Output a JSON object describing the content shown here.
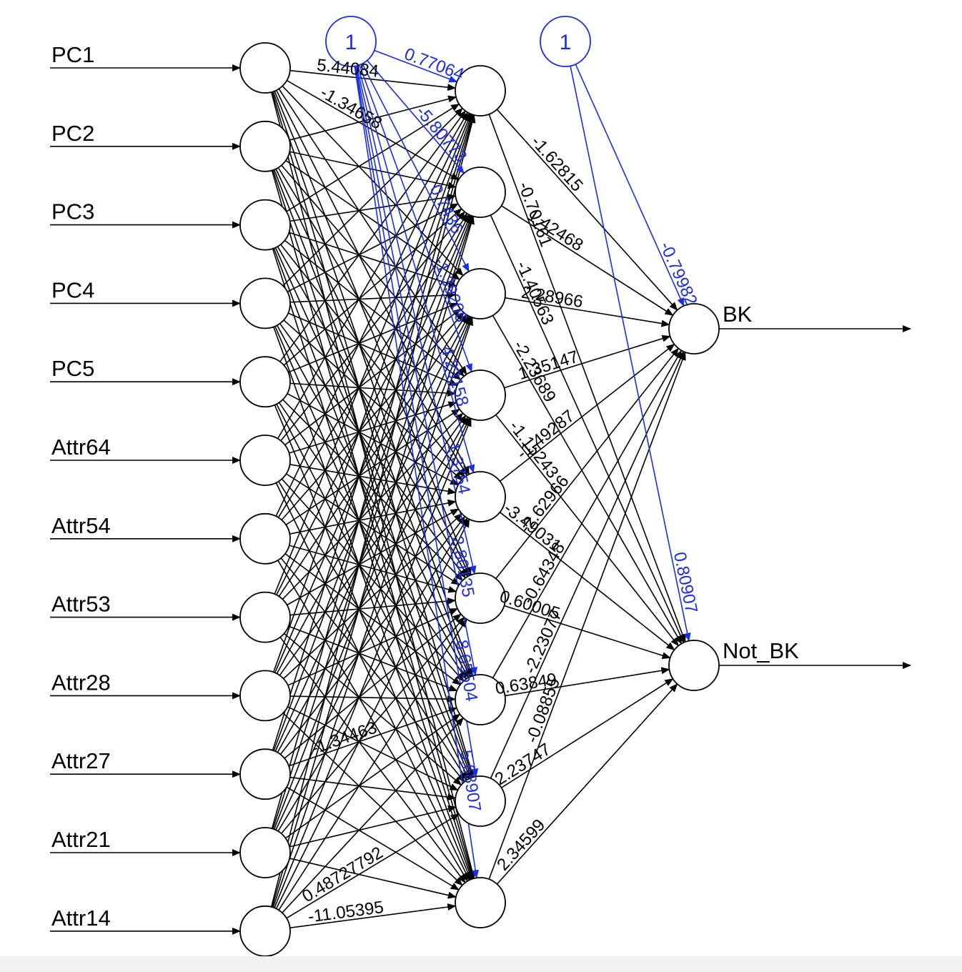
{
  "diagram": {
    "inputs": [
      "PC1",
      "PC2",
      "PC3",
      "PC4",
      "PC5",
      "Attr64",
      "Attr54",
      "Attr53",
      "Attr28",
      "Attr27",
      "Attr21",
      "Attr14"
    ],
    "outputs": [
      "BK",
      "Not_BK"
    ],
    "bias_label": "1",
    "hidden_count": 9,
    "colors": {
      "edge": "#000000",
      "bias": "#1a2ee6"
    },
    "input_hidden_weight_labels": [
      {
        "from": 0,
        "to": 0,
        "text": "5.44084"
      },
      {
        "from": 0,
        "to": 1,
        "text": "-1.34658"
      },
      {
        "from": 11,
        "to": 8,
        "text": "-11.05395"
      },
      {
        "from": 11,
        "to": 7,
        "text": "0.48727792"
      },
      {
        "from": 9,
        "to": 6,
        "text": "-1.34463"
      }
    ],
    "hidden_bias_labels": [
      "0.77064",
      "-5.80773",
      "0.7436",
      "-1.39206",
      "4.23158",
      "1.3754",
      "2.80135",
      "8.65504",
      "5.68907"
    ],
    "hidden_output_labels": [
      {
        "hidden": 0,
        "output": 0,
        "text": "-1.62815"
      },
      {
        "hidden": 0,
        "output": 1,
        "text": "-0.70161"
      },
      {
        "hidden": 1,
        "output": 0,
        "text": "1.42468"
      },
      {
        "hidden": 1,
        "output": 1,
        "text": "-1.40563"
      },
      {
        "hidden": 2,
        "output": 0,
        "text": "2.28966"
      },
      {
        "hidden": 2,
        "output": 1,
        "text": "-2.23689"
      },
      {
        "hidden": 3,
        "output": 0,
        "text": "1.35147"
      },
      {
        "hidden": 3,
        "output": 1,
        "text": "-1.15243"
      },
      {
        "hidden": 4,
        "output": 0,
        "text": "-1.49287"
      },
      {
        "hidden": 4,
        "output": 1,
        "text": "-3.49031"
      },
      {
        "hidden": 5,
        "output": 0,
        "text": "-2.62966"
      },
      {
        "hidden": 5,
        "output": 1,
        "text": "0.60005"
      },
      {
        "hidden": 6,
        "output": 0,
        "text": "-0.64348"
      },
      {
        "hidden": 6,
        "output": 1,
        "text": "0.63849"
      },
      {
        "hidden": 7,
        "output": 0,
        "text": "-2.23077"
      },
      {
        "hidden": 7,
        "output": 1,
        "text": "2.23747"
      },
      {
        "hidden": 8,
        "output": 0,
        "text": "-0.08855"
      },
      {
        "hidden": 8,
        "output": 1,
        "text": "2.34599"
      }
    ],
    "output_bias_labels": [
      "-0.79982",
      "0.80907"
    ]
  }
}
